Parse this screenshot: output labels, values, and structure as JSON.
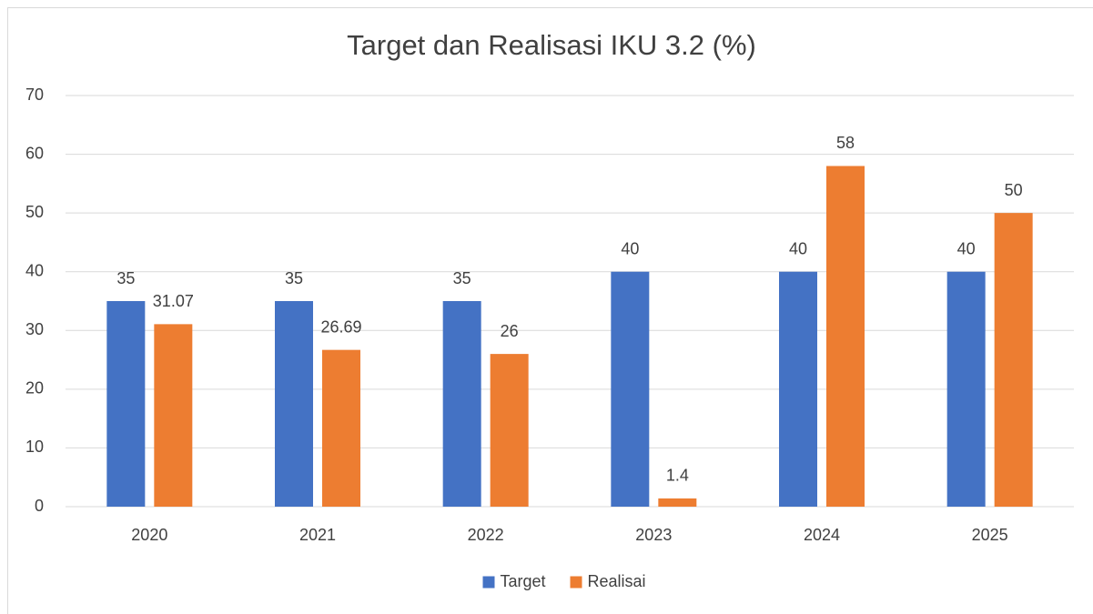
{
  "chart_data": {
    "type": "bar",
    "title": "Target dan Realisasi IKU 3.2 (%)",
    "categories": [
      "2020",
      "2021",
      "2022",
      "2023",
      "2024",
      "2025"
    ],
    "series": [
      {
        "name": "Target",
        "color": "#4472c4",
        "values": [
          35,
          35,
          35,
          40,
          40,
          40
        ]
      },
      {
        "name": "Realisai",
        "color": "#ed7d31",
        "values": [
          31.07,
          26.69,
          26,
          1.4,
          58,
          50
        ]
      }
    ],
    "ylim": [
      0,
      70
    ],
    "yticks": [
      0,
      10,
      20,
      30,
      40,
      50,
      60,
      70
    ],
    "grid": true,
    "legend": "bottom"
  }
}
